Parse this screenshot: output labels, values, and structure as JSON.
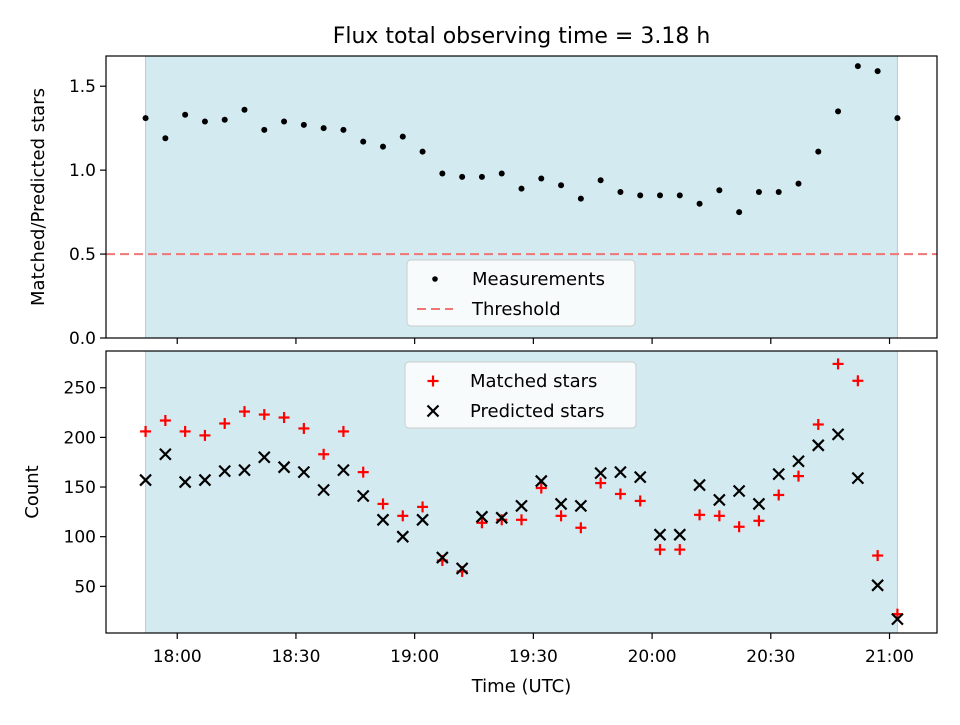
{
  "chart_data": [
    {
      "type": "scatter",
      "title": "Flux total observing time = 3.18 h",
      "ylabel": "Matched/Predicted stars",
      "xlabel": "",
      "ylim": [
        0,
        1.68
      ],
      "yticks": [
        0.0,
        0.5,
        1.0,
        1.5
      ],
      "ytick_labels": [
        "0.0",
        "0.5",
        "1.0",
        "1.5"
      ],
      "shaded_span": {
        "start": "17:52",
        "end": "21:02",
        "color": "#d4eaf1"
      },
      "threshold": {
        "name": "Threshold",
        "value": 0.5,
        "color": "#f07575",
        "style": "dashed"
      },
      "legend": {
        "placement": "lower center",
        "entries": [
          "Measurements",
          "Threshold"
        ]
      },
      "series": [
        {
          "name": "Measurements",
          "marker": "dot",
          "color": "#000000",
          "x": [
            "17:52",
            "17:57",
            "18:02",
            "18:07",
            "18:12",
            "18:17",
            "18:22",
            "18:27",
            "18:32",
            "18:37",
            "18:42",
            "18:47",
            "18:52",
            "18:57",
            "19:02",
            "19:07",
            "19:12",
            "19:17",
            "19:22",
            "19:27",
            "19:32",
            "19:37",
            "19:42",
            "19:47",
            "19:52",
            "19:57",
            "20:02",
            "20:07",
            "20:12",
            "20:17",
            "20:22",
            "20:27",
            "20:32",
            "20:37",
            "20:42",
            "20:47",
            "20:52",
            "20:57",
            "21:02"
          ],
          "values": [
            1.31,
            1.19,
            1.33,
            1.29,
            1.3,
            1.36,
            1.24,
            1.29,
            1.27,
            1.25,
            1.24,
            1.17,
            1.14,
            1.2,
            1.11,
            0.98,
            0.96,
            0.96,
            0.98,
            0.89,
            0.95,
            0.91,
            0.83,
            0.94,
            0.87,
            0.85,
            0.85,
            0.85,
            0.8,
            0.88,
            0.75,
            0.87,
            0.87,
            0.92,
            1.11,
            1.35,
            1.62,
            1.59,
            1.31
          ]
        }
      ]
    },
    {
      "type": "scatter",
      "xlabel": "Time (UTC)",
      "ylabel": "Count",
      "ylim": [
        3,
        287
      ],
      "yticks": [
        50,
        100,
        150,
        200,
        250
      ],
      "ytick_labels": [
        "50",
        "100",
        "150",
        "200",
        "250"
      ],
      "xlim": [
        "17:42",
        "21:12"
      ],
      "xticks": [
        "18:00",
        "18:30",
        "19:00",
        "19:30",
        "20:00",
        "20:30",
        "21:00"
      ],
      "shaded_span": {
        "start": "17:52",
        "end": "21:02",
        "color": "#d4eaf1"
      },
      "legend": {
        "placement": "upper center",
        "entries": [
          "Matched stars",
          "Predicted stars"
        ]
      },
      "series": [
        {
          "name": "Matched stars",
          "marker": "plus",
          "color": "#ff0000",
          "x": [
            "17:52",
            "17:57",
            "18:02",
            "18:07",
            "18:12",
            "18:17",
            "18:22",
            "18:27",
            "18:32",
            "18:37",
            "18:42",
            "18:47",
            "18:52",
            "18:57",
            "19:02",
            "19:07",
            "19:12",
            "19:17",
            "19:22",
            "19:27",
            "19:32",
            "19:37",
            "19:42",
            "19:47",
            "19:52",
            "19:57",
            "20:02",
            "20:07",
            "20:12",
            "20:17",
            "20:22",
            "20:27",
            "20:32",
            "20:37",
            "20:42",
            "20:47",
            "20:52",
            "20:57",
            "21:02"
          ],
          "values": [
            206,
            217,
            206,
            202,
            214,
            226,
            223,
            220,
            209,
            183,
            206,
            165,
            133,
            121,
            130,
            76,
            65,
            114,
            117,
            117,
            149,
            121,
            109,
            154,
            143,
            136,
            87,
            87,
            122,
            121,
            110,
            116,
            142,
            161,
            213,
            274,
            257,
            81,
            22
          ]
        },
        {
          "name": "Predicted stars",
          "marker": "x",
          "color": "#000000",
          "x": [
            "17:52",
            "17:57",
            "18:02",
            "18:07",
            "18:12",
            "18:17",
            "18:22",
            "18:27",
            "18:32",
            "18:37",
            "18:42",
            "18:47",
            "18:52",
            "18:57",
            "19:02",
            "19:07",
            "19:12",
            "19:17",
            "19:22",
            "19:27",
            "19:32",
            "19:37",
            "19:42",
            "19:47",
            "19:52",
            "19:57",
            "20:02",
            "20:07",
            "20:12",
            "20:17",
            "20:22",
            "20:27",
            "20:32",
            "20:37",
            "20:42",
            "20:47",
            "20:52",
            "20:57",
            "21:02"
          ],
          "values": [
            157,
            183,
            155,
            157,
            166,
            167,
            180,
            170,
            165,
            147,
            167,
            141,
            117,
            100,
            117,
            79,
            68,
            120,
            119,
            131,
            156,
            133,
            131,
            164,
            165,
            160,
            102,
            102,
            152,
            137,
            146,
            133,
            163,
            176,
            192,
            203,
            159,
            51,
            17
          ]
        }
      ]
    }
  ]
}
